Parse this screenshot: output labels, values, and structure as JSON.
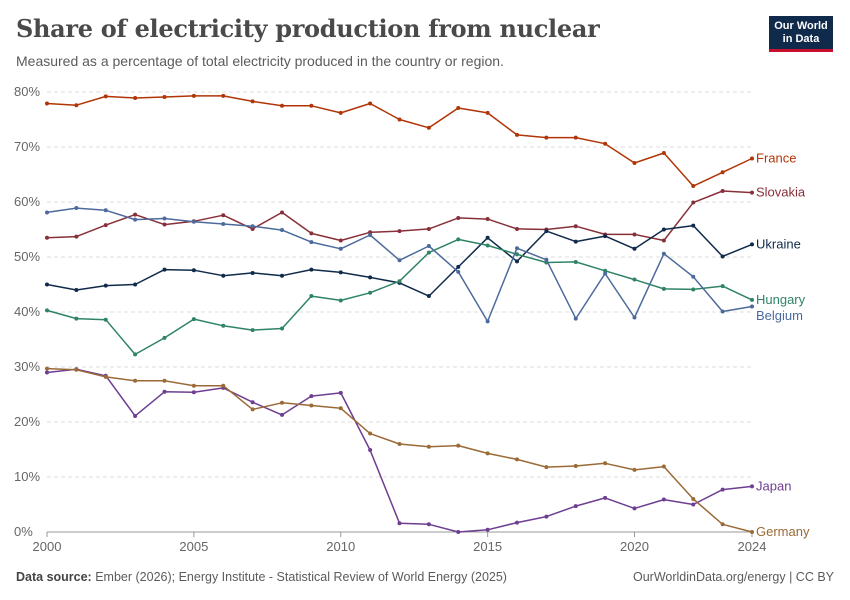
{
  "header": {
    "title": "Share of electricity production from nuclear",
    "subtitle": "Measured as a percentage of total electricity produced in the country or region."
  },
  "logo": {
    "line1": "Our World",
    "line2": "in Data"
  },
  "footer": {
    "source_label": "Data source:",
    "source_text": "Ember (2026); Energy Institute - Statistical Review of World Energy (2025)",
    "credit": "OurWorldinData.org/energy | CC BY"
  },
  "chart_data": {
    "type": "line",
    "x": [
      2000,
      2001,
      2002,
      2003,
      2004,
      2005,
      2006,
      2007,
      2008,
      2009,
      2010,
      2011,
      2012,
      2013,
      2014,
      2015,
      2016,
      2017,
      2018,
      2019,
      2020,
      2021,
      2022,
      2023,
      2024
    ],
    "xlim": [
      2000,
      2024
    ],
    "ylim": [
      0,
      80
    ],
    "x_ticks": [
      2000,
      2005,
      2010,
      2015,
      2020,
      2024
    ],
    "y_ticks": [
      0,
      10,
      20,
      30,
      40,
      50,
      60,
      70,
      80
    ],
    "y_tick_labels": [
      "0%",
      "10%",
      "20%",
      "30%",
      "40%",
      "50%",
      "60%",
      "70%",
      "80%"
    ],
    "grid": "horizontal dashed",
    "legend": "labels at line ends (right)",
    "series": [
      {
        "name": "France",
        "color": "#b13507",
        "values": [
          77.9,
          77.6,
          79.2,
          78.9,
          79.1,
          79.3,
          79.3,
          78.3,
          77.5,
          77.5,
          76.2,
          77.9,
          75.0,
          73.5,
          77.1,
          76.2,
          72.2,
          71.7,
          71.7,
          70.6,
          67.1,
          68.9,
          62.9,
          65.4,
          67.9
        ]
      },
      {
        "name": "Slovakia",
        "color": "#883039",
        "values": [
          53.5,
          53.7,
          55.8,
          57.7,
          55.9,
          56.5,
          57.6,
          55.1,
          58.1,
          54.3,
          53.0,
          54.5,
          54.7,
          55.1,
          57.1,
          56.9,
          55.1,
          55.0,
          55.6,
          54.1,
          54.1,
          53.0,
          59.9,
          62.0,
          61.7
        ]
      },
      {
        "name": "Ukraine",
        "color": "#0f2a4a",
        "values": [
          45.0,
          44.0,
          44.8,
          45.0,
          47.7,
          47.6,
          46.6,
          47.1,
          46.6,
          47.7,
          47.2,
          46.3,
          45.3,
          42.9,
          48.2,
          53.5,
          49.2,
          54.7,
          52.8,
          53.8,
          51.5,
          55.0,
          55.7,
          50.1,
          52.3
        ]
      },
      {
        "name": "Hungary",
        "color": "#2f8465",
        "values": [
          40.3,
          38.8,
          38.6,
          32.3,
          35.3,
          38.7,
          37.5,
          36.7,
          37.0,
          42.9,
          42.1,
          43.5,
          45.6,
          50.8,
          53.2,
          52.1,
          50.5,
          49.0,
          49.1,
          47.5,
          45.9,
          44.2,
          44.1,
          44.7,
          42.2
        ]
      },
      {
        "name": "Belgium",
        "color": "#4c6a9c",
        "values": [
          58.1,
          58.9,
          58.5,
          56.8,
          57.0,
          56.4,
          56.0,
          55.6,
          54.9,
          52.7,
          51.5,
          54.0,
          49.4,
          52.0,
          47.3,
          38.3,
          51.6,
          49.5,
          38.8,
          47.0,
          39.0,
          50.6,
          46.4,
          40.1,
          41.0
        ]
      },
      {
        "name": "Japan",
        "color": "#6d3e91",
        "values": [
          29.0,
          29.6,
          28.4,
          21.1,
          25.5,
          25.4,
          26.2,
          23.6,
          21.3,
          24.7,
          25.3,
          14.9,
          1.6,
          1.4,
          0.0,
          0.4,
          1.7,
          2.8,
          4.7,
          6.2,
          4.3,
          5.9,
          5.0,
          7.7,
          8.3
        ]
      },
      {
        "name": "Germany",
        "color": "#9a6a37",
        "values": [
          29.7,
          29.5,
          28.2,
          27.5,
          27.5,
          26.6,
          26.6,
          22.3,
          23.5,
          23.0,
          22.5,
          17.9,
          16.0,
          15.5,
          15.7,
          14.3,
          13.2,
          11.8,
          12.0,
          12.5,
          11.3,
          11.9,
          6.0,
          1.4,
          0.0
        ]
      }
    ]
  }
}
